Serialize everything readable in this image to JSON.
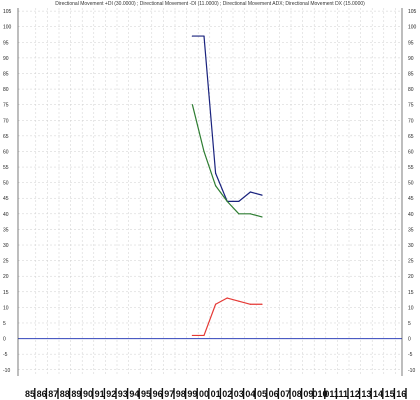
{
  "chart_data": {
    "type": "line",
    "title": "Directional Movement +DI (30.0000) ; Directional Movement -DI (11.0000) ; Directional Movement ADX; Directional Movement DX (15.0000)",
    "xlabel": "",
    "ylabel": "",
    "categories": [
      "85",
      "86",
      "87",
      "88",
      "89",
      "90",
      "91",
      "92",
      "93",
      "94",
      "95",
      "96",
      "97",
      "98",
      "99",
      "00",
      "01",
      "02",
      "03",
      "04",
      "05",
      "06",
      "07",
      "08",
      "09",
      "010",
      "011",
      "11",
      "12",
      "13",
      "14",
      "15",
      "16"
    ],
    "y_ticks": [
      -10,
      -5,
      0,
      5,
      10,
      15,
      20,
      25,
      30,
      35,
      40,
      45,
      50,
      55,
      60,
      65,
      70,
      75,
      80,
      85,
      90,
      95,
      100,
      105
    ],
    "ylim": [
      -12,
      106
    ],
    "grid": true,
    "zero_line": 0,
    "series": [
      {
        "color": "#1a237e",
        "x": [
          "99",
          "00",
          "01",
          "02",
          "03",
          "04",
          "05"
        ],
        "values": [
          97,
          97,
          53,
          44,
          44,
          47,
          46
        ]
      },
      {
        "color": "#2e7d32",
        "x": [
          "99",
          "00",
          "01",
          "02",
          "03",
          "04",
          "05"
        ],
        "values": [
          75,
          60,
          49,
          44,
          40,
          40,
          39
        ]
      },
      {
        "color": "#e53935",
        "x": [
          "99",
          "00",
          "01",
          "02",
          "03",
          "04",
          "05"
        ],
        "values": [
          1,
          1,
          11,
          13,
          12,
          11,
          11
        ]
      }
    ]
  }
}
